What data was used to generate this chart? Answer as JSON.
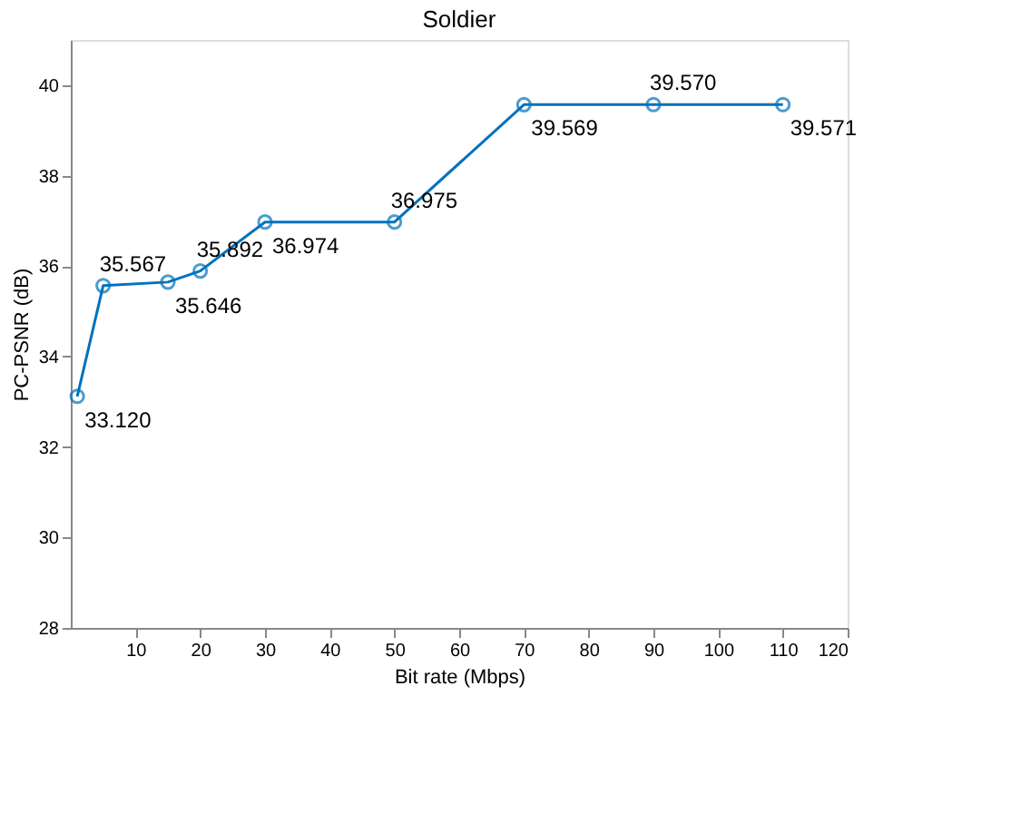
{
  "chart_data": {
    "type": "line",
    "title": "Soldier",
    "xlabel": "Bit rate (Mbps)",
    "ylabel": "PC-PSNR (dB)",
    "x": [
      1,
      5,
      15,
      20,
      30,
      50,
      70,
      90,
      110
    ],
    "series": [
      {
        "color": "#0072bd",
        "values": [
          33.12,
          35.567,
          35.646,
          35.892,
          36.974,
          36.975,
          39.569,
          39.57,
          39.571
        ],
        "value_labels": [
          "33.120",
          "35.567",
          "35.646",
          "35.892",
          "36.974",
          "36.975",
          "39.569",
          "39.570",
          "39.571"
        ]
      }
    ],
    "xlim": [
      0,
      120
    ],
    "xticks": [
      10,
      20,
      30,
      40,
      50,
      60,
      70,
      80,
      90,
      100,
      110,
      120
    ],
    "ylim": [
      28,
      41
    ],
    "yticks": [
      28,
      30,
      32,
      34,
      36,
      38,
      40
    ],
    "marker": "circle",
    "line_style": "solid",
    "grid": false
  }
}
